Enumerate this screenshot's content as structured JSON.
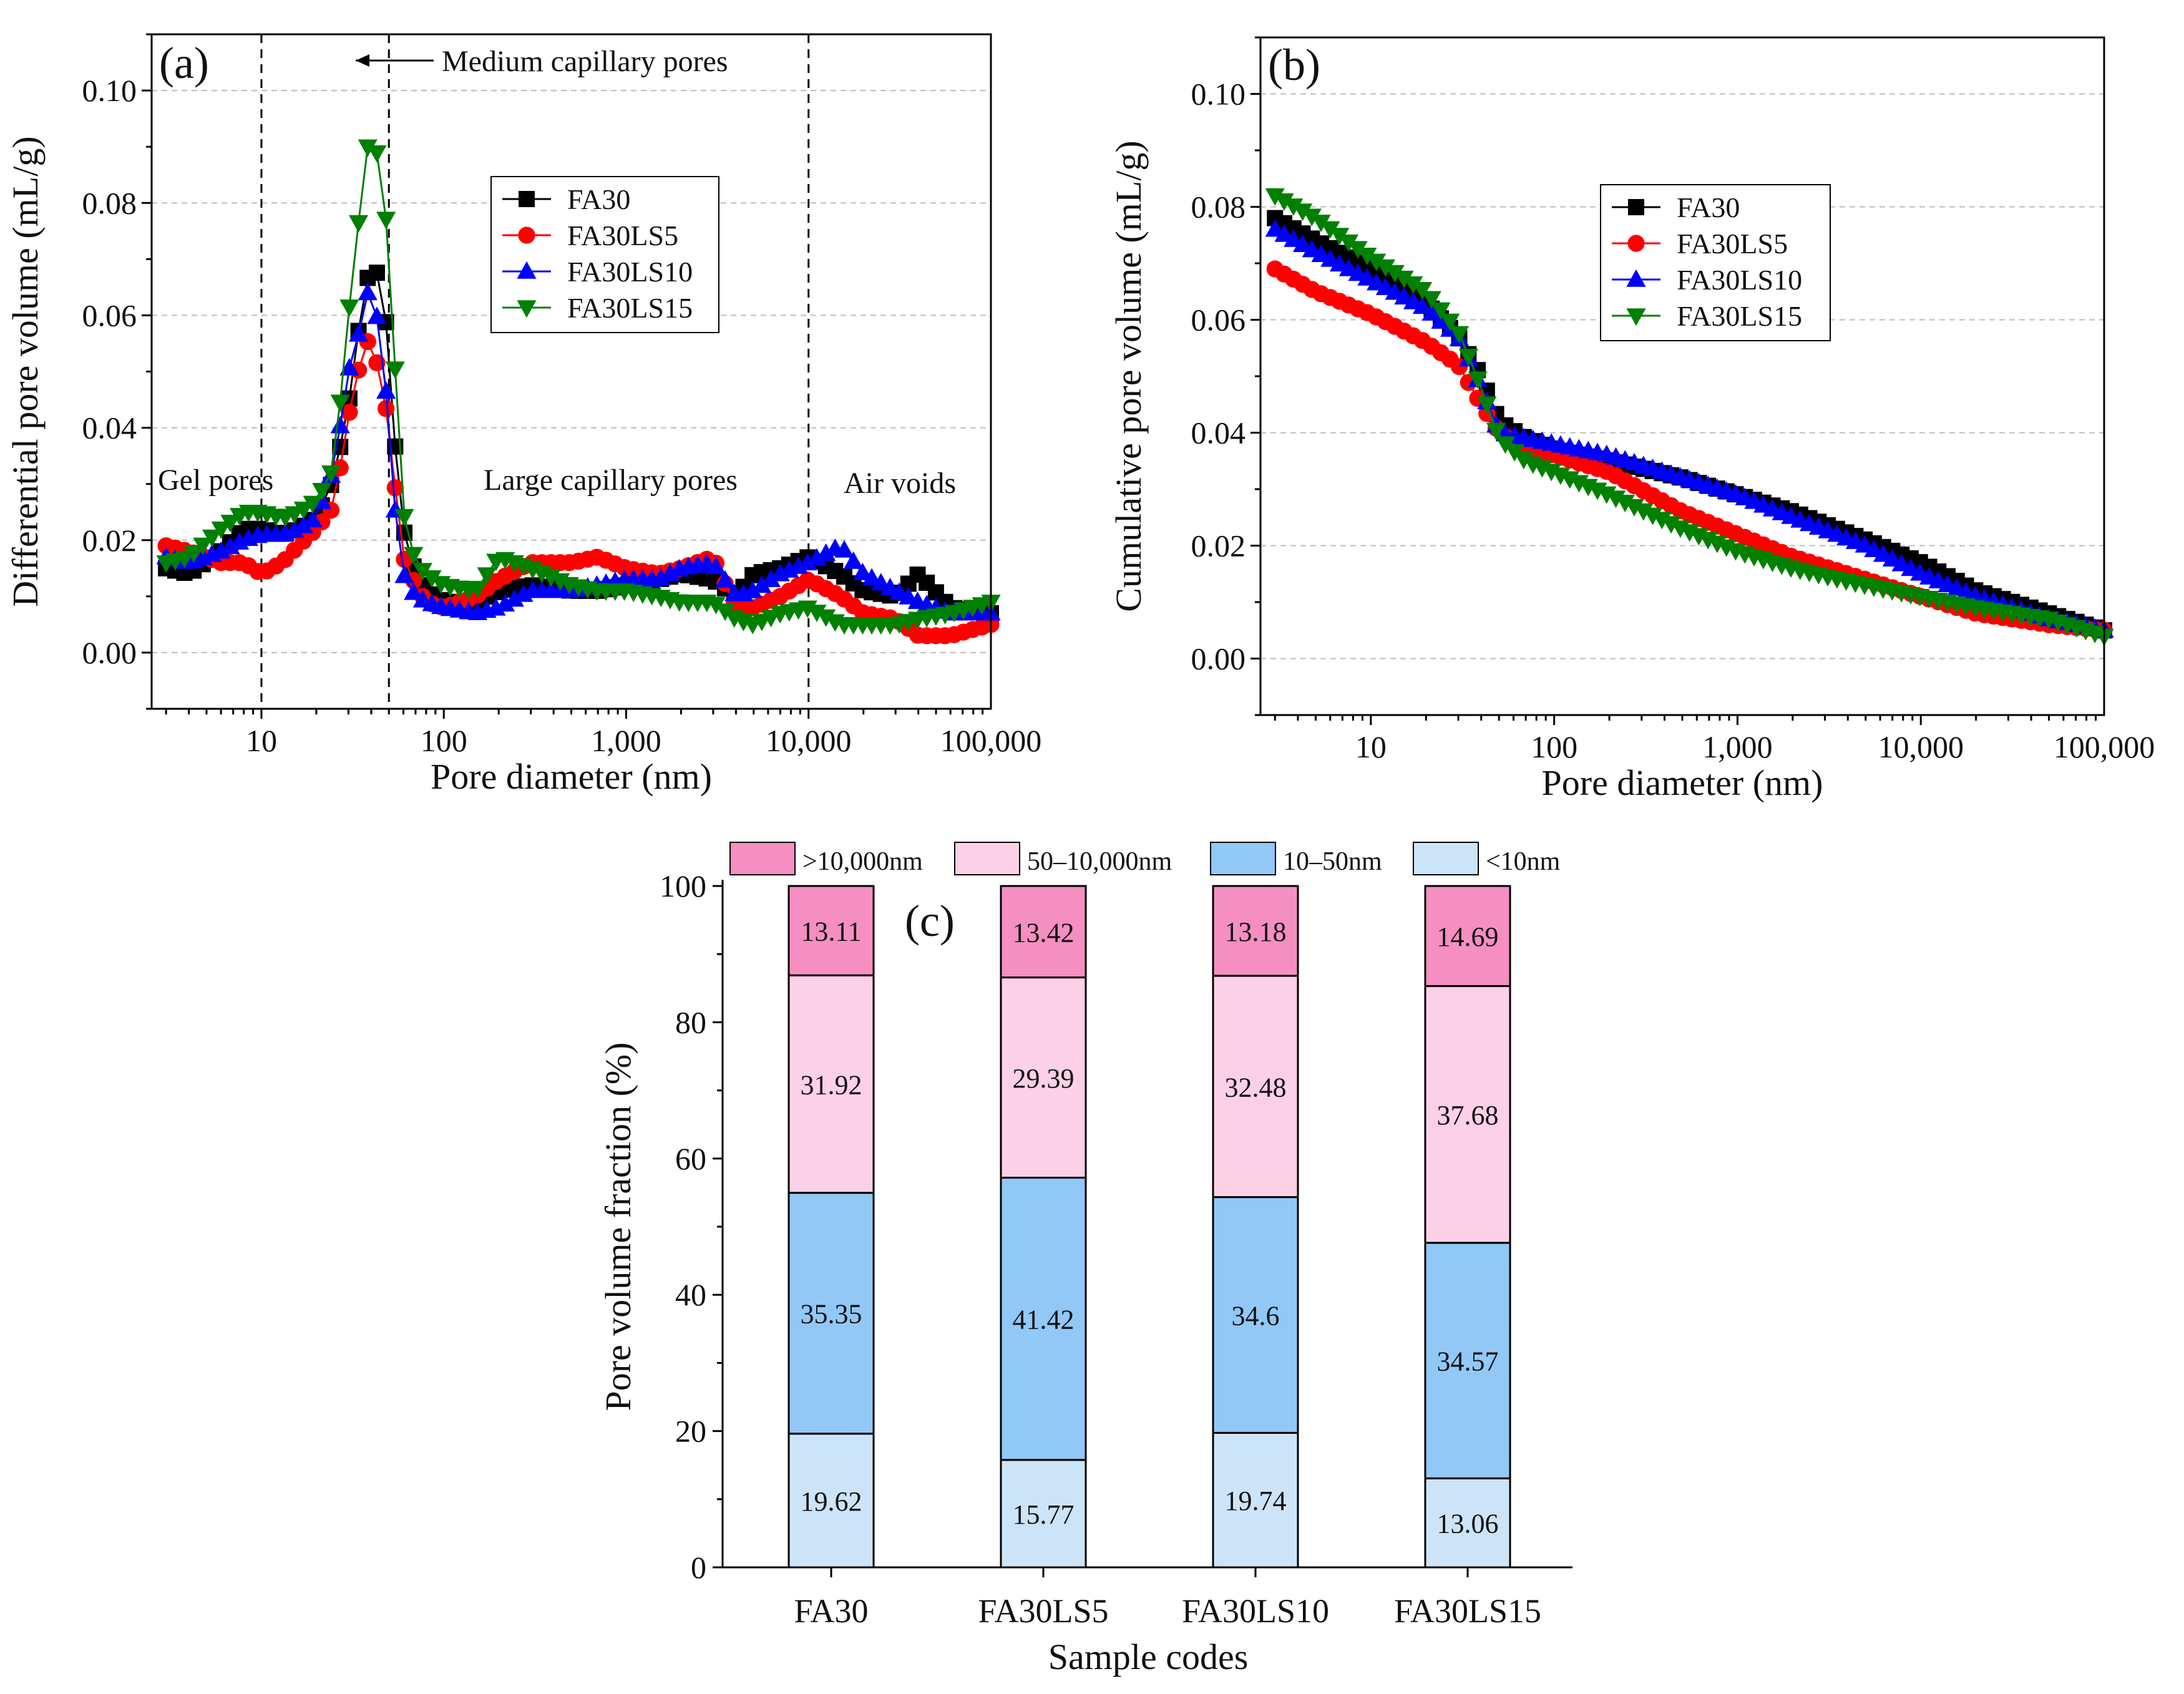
{
  "chart_data": [
    {
      "id": "a",
      "type": "line",
      "panel_label": "(a)",
      "xlabel": "Pore diameter (nm)",
      "ylabel": "Differential pore volume (mL/g)",
      "xscale": "log",
      "xlim": [
        2.5,
        100000
      ],
      "ylim": [
        -0.01,
        0.11
      ],
      "xticks": [
        10,
        100,
        1000,
        10000,
        100000
      ],
      "xtick_labels": [
        "10",
        "100",
        "1,000",
        "10,000",
        "100,000"
      ],
      "yticks": [
        0,
        0.02,
        0.04,
        0.06,
        0.08,
        0.1
      ],
      "ytick_labels": [
        "0.00",
        "0.02",
        "0.04",
        "0.06",
        "0.08",
        "0.10"
      ],
      "grid": true,
      "legend_position": "upper-middle",
      "vlines": [
        10,
        50,
        10000
      ],
      "annotations": {
        "medium": "Medium capillary pores",
        "gel": "Gel pores",
        "large": "Large capillary pores",
        "air": "Air voids"
      },
      "series": [
        {
          "name": "FA30",
          "color": "#000000",
          "marker": "square",
          "x": [
            3,
            4,
            6,
            8,
            10,
            13,
            16,
            20,
            25,
            30,
            35,
            40,
            45,
            50,
            55,
            60,
            70,
            80,
            100,
            150,
            200,
            300,
            500,
            700,
            1000,
            1500,
            2000,
            3000,
            4000,
            5000,
            7000,
            10000,
            15000,
            20000,
            30000,
            40000,
            60000,
            100000
          ],
          "y": [
            0.015,
            0.014,
            0.018,
            0.022,
            0.022,
            0.021,
            0.022,
            0.024,
            0.031,
            0.044,
            0.06,
            0.07,
            0.066,
            0.055,
            0.033,
            0.022,
            0.014,
            0.011,
            0.009,
            0.009,
            0.011,
            0.012,
            0.011,
            0.011,
            0.012,
            0.013,
            0.014,
            0.013,
            0.01,
            0.014,
            0.015,
            0.017,
            0.014,
            0.011,
            0.01,
            0.014,
            0.008,
            0.007
          ]
        },
        {
          "name": "FA30LS5",
          "color": "#ff0000",
          "marker": "circle",
          "x": [
            3,
            4,
            6,
            8,
            10,
            13,
            16,
            20,
            25,
            30,
            35,
            40,
            45,
            50,
            55,
            60,
            70,
            80,
            100,
            150,
            200,
            300,
            500,
            700,
            1000,
            1500,
            2000,
            3000,
            4000,
            5000,
            7000,
            10000,
            15000,
            20000,
            30000,
            40000,
            60000,
            100000
          ],
          "y": [
            0.019,
            0.018,
            0.016,
            0.016,
            0.014,
            0.016,
            0.019,
            0.022,
            0.026,
            0.042,
            0.052,
            0.057,
            0.048,
            0.041,
            0.027,
            0.017,
            0.012,
            0.009,
            0.008,
            0.01,
            0.013,
            0.016,
            0.016,
            0.017,
            0.015,
            0.014,
            0.015,
            0.017,
            0.008,
            0.008,
            0.01,
            0.013,
            0.01,
            0.007,
            0.006,
            0.003,
            0.003,
            0.005
          ]
        },
        {
          "name": "FA30LS10",
          "color": "#0000ff",
          "marker": "triangle-up",
          "x": [
            3,
            4,
            6,
            8,
            10,
            13,
            16,
            20,
            25,
            30,
            35,
            40,
            45,
            50,
            55,
            60,
            70,
            80,
            100,
            150,
            200,
            300,
            500,
            700,
            1000,
            1500,
            2000,
            3000,
            4000,
            5000,
            7000,
            10000,
            15000,
            20000,
            30000,
            40000,
            60000,
            100000
          ],
          "y": [
            0.017,
            0.016,
            0.018,
            0.02,
            0.021,
            0.021,
            0.022,
            0.024,
            0.033,
            0.05,
            0.058,
            0.067,
            0.055,
            0.042,
            0.022,
            0.014,
            0.01,
            0.009,
            0.008,
            0.007,
            0.008,
            0.011,
            0.011,
            0.012,
            0.013,
            0.013,
            0.015,
            0.016,
            0.01,
            0.011,
            0.014,
            0.016,
            0.019,
            0.014,
            0.011,
            0.009,
            0.007,
            0.007
          ]
        },
        {
          "name": "FA30LS15",
          "color": "#008000",
          "marker": "triangle-down",
          "x": [
            3,
            4,
            6,
            8,
            10,
            13,
            16,
            20,
            25,
            30,
            35,
            40,
            45,
            50,
            55,
            60,
            70,
            80,
            100,
            150,
            200,
            300,
            500,
            700,
            1000,
            1500,
            2000,
            3000,
            4000,
            5000,
            7000,
            10000,
            15000,
            20000,
            30000,
            40000,
            60000,
            100000
          ],
          "y": [
            0.016,
            0.017,
            0.022,
            0.025,
            0.025,
            0.024,
            0.025,
            0.027,
            0.033,
            0.06,
            0.08,
            0.095,
            0.085,
            0.073,
            0.046,
            0.025,
            0.016,
            0.014,
            0.012,
            0.011,
            0.017,
            0.015,
            0.012,
            0.011,
            0.011,
            0.01,
            0.009,
            0.009,
            0.006,
            0.005,
            0.007,
            0.008,
            0.005,
            0.005,
            0.005,
            0.006,
            0.007,
            0.009
          ]
        }
      ]
    },
    {
      "id": "b",
      "type": "line",
      "panel_label": "(b)",
      "xlabel": "Pore diameter (nm)",
      "ylabel": "Cumulative pore volume (mL/g)",
      "xscale": "log",
      "xlim": [
        2.5,
        100000
      ],
      "ylim": [
        -0.01,
        0.11
      ],
      "xticks": [
        10,
        100,
        1000,
        10000,
        100000
      ],
      "xtick_labels": [
        "10",
        "100",
        "1,000",
        "10,000",
        "100,000"
      ],
      "yticks": [
        0,
        0.02,
        0.04,
        0.06,
        0.08,
        0.1
      ],
      "ytick_labels": [
        "0.00",
        "0.02",
        "0.04",
        "0.06",
        "0.08",
        "0.10"
      ],
      "grid": true,
      "legend_position": "upper-middle",
      "series": [
        {
          "name": "FA30",
          "color": "#000000",
          "marker": "square",
          "x": [
            3,
            5,
            10,
            20,
            30,
            40,
            50,
            70,
            100,
            200,
            500,
            1000,
            2000,
            5000,
            10000,
            20000,
            50000,
            100000
          ],
          "y": [
            0.078,
            0.074,
            0.069,
            0.063,
            0.057,
            0.05,
            0.042,
            0.039,
            0.037,
            0.035,
            0.032,
            0.029,
            0.026,
            0.021,
            0.017,
            0.012,
            0.008,
            0.005
          ]
        },
        {
          "name": "FA30LS5",
          "color": "#ff0000",
          "marker": "circle",
          "x": [
            3,
            5,
            10,
            20,
            30,
            40,
            50,
            70,
            100,
            200,
            500,
            1000,
            2000,
            5000,
            10000,
            20000,
            50000,
            100000
          ],
          "y": [
            0.069,
            0.065,
            0.061,
            0.056,
            0.052,
            0.045,
            0.04,
            0.037,
            0.036,
            0.033,
            0.026,
            0.022,
            0.018,
            0.014,
            0.011,
            0.008,
            0.006,
            0.005
          ]
        },
        {
          "name": "FA30LS10",
          "color": "#0000ff",
          "marker": "triangle-up",
          "x": [
            3,
            5,
            10,
            20,
            30,
            40,
            50,
            70,
            100,
            200,
            500,
            1000,
            2000,
            5000,
            10000,
            20000,
            50000,
            100000
          ],
          "y": [
            0.076,
            0.072,
            0.067,
            0.062,
            0.057,
            0.048,
            0.04,
            0.039,
            0.038,
            0.036,
            0.032,
            0.029,
            0.025,
            0.02,
            0.015,
            0.011,
            0.007,
            0.005
          ]
        },
        {
          "name": "FA30LS15",
          "color": "#008000",
          "marker": "triangle-down",
          "x": [
            3,
            5,
            10,
            20,
            30,
            40,
            50,
            70,
            100,
            200,
            500,
            1000,
            2000,
            5000,
            10000,
            20000,
            50000,
            100000
          ],
          "y": [
            0.082,
            0.078,
            0.071,
            0.065,
            0.058,
            0.048,
            0.039,
            0.035,
            0.033,
            0.029,
            0.023,
            0.019,
            0.016,
            0.013,
            0.011,
            0.009,
            0.007,
            0.004
          ]
        }
      ]
    },
    {
      "id": "c",
      "type": "bar",
      "stacked": true,
      "panel_label": "(c)",
      "xlabel": "Sample codes",
      "ylabel": "Pore volume fraction (%)",
      "ylim": [
        0,
        100
      ],
      "yticks": [
        0,
        20,
        40,
        60,
        80,
        100
      ],
      "ytick_labels": [
        "0",
        "20",
        "40",
        "60",
        "80",
        "100"
      ],
      "categories": [
        "FA30",
        "FA30LS5",
        "FA30LS10",
        "FA30LS15"
      ],
      "legend_position": "top",
      "series": [
        {
          "name": "<10nm",
          "color": "#cce4f7",
          "values": [
            19.62,
            15.77,
            19.74,
            13.06
          ],
          "labels": [
            "19.62",
            "15.77",
            "19.74",
            "13.06"
          ]
        },
        {
          "name": "10–50nm",
          "color": "#91c8f6",
          "values": [
            35.35,
            41.42,
            34.6,
            34.57
          ],
          "labels": [
            "35.35",
            "41.42",
            "34.6",
            "34.57"
          ]
        },
        {
          "name": "50–10,000nm",
          "color": "#fcd0e6",
          "values": [
            31.92,
            29.39,
            32.48,
            37.68
          ],
          "labels": [
            "31.92",
            "29.39",
            "32.48",
            "37.68"
          ]
        },
        {
          "name": ">10,000nm",
          "color": "#f58fc1",
          "values": [
            13.11,
            13.42,
            13.18,
            14.69
          ],
          "labels": [
            "13.11",
            "13.42",
            "13.18",
            "14.69"
          ]
        }
      ]
    }
  ]
}
